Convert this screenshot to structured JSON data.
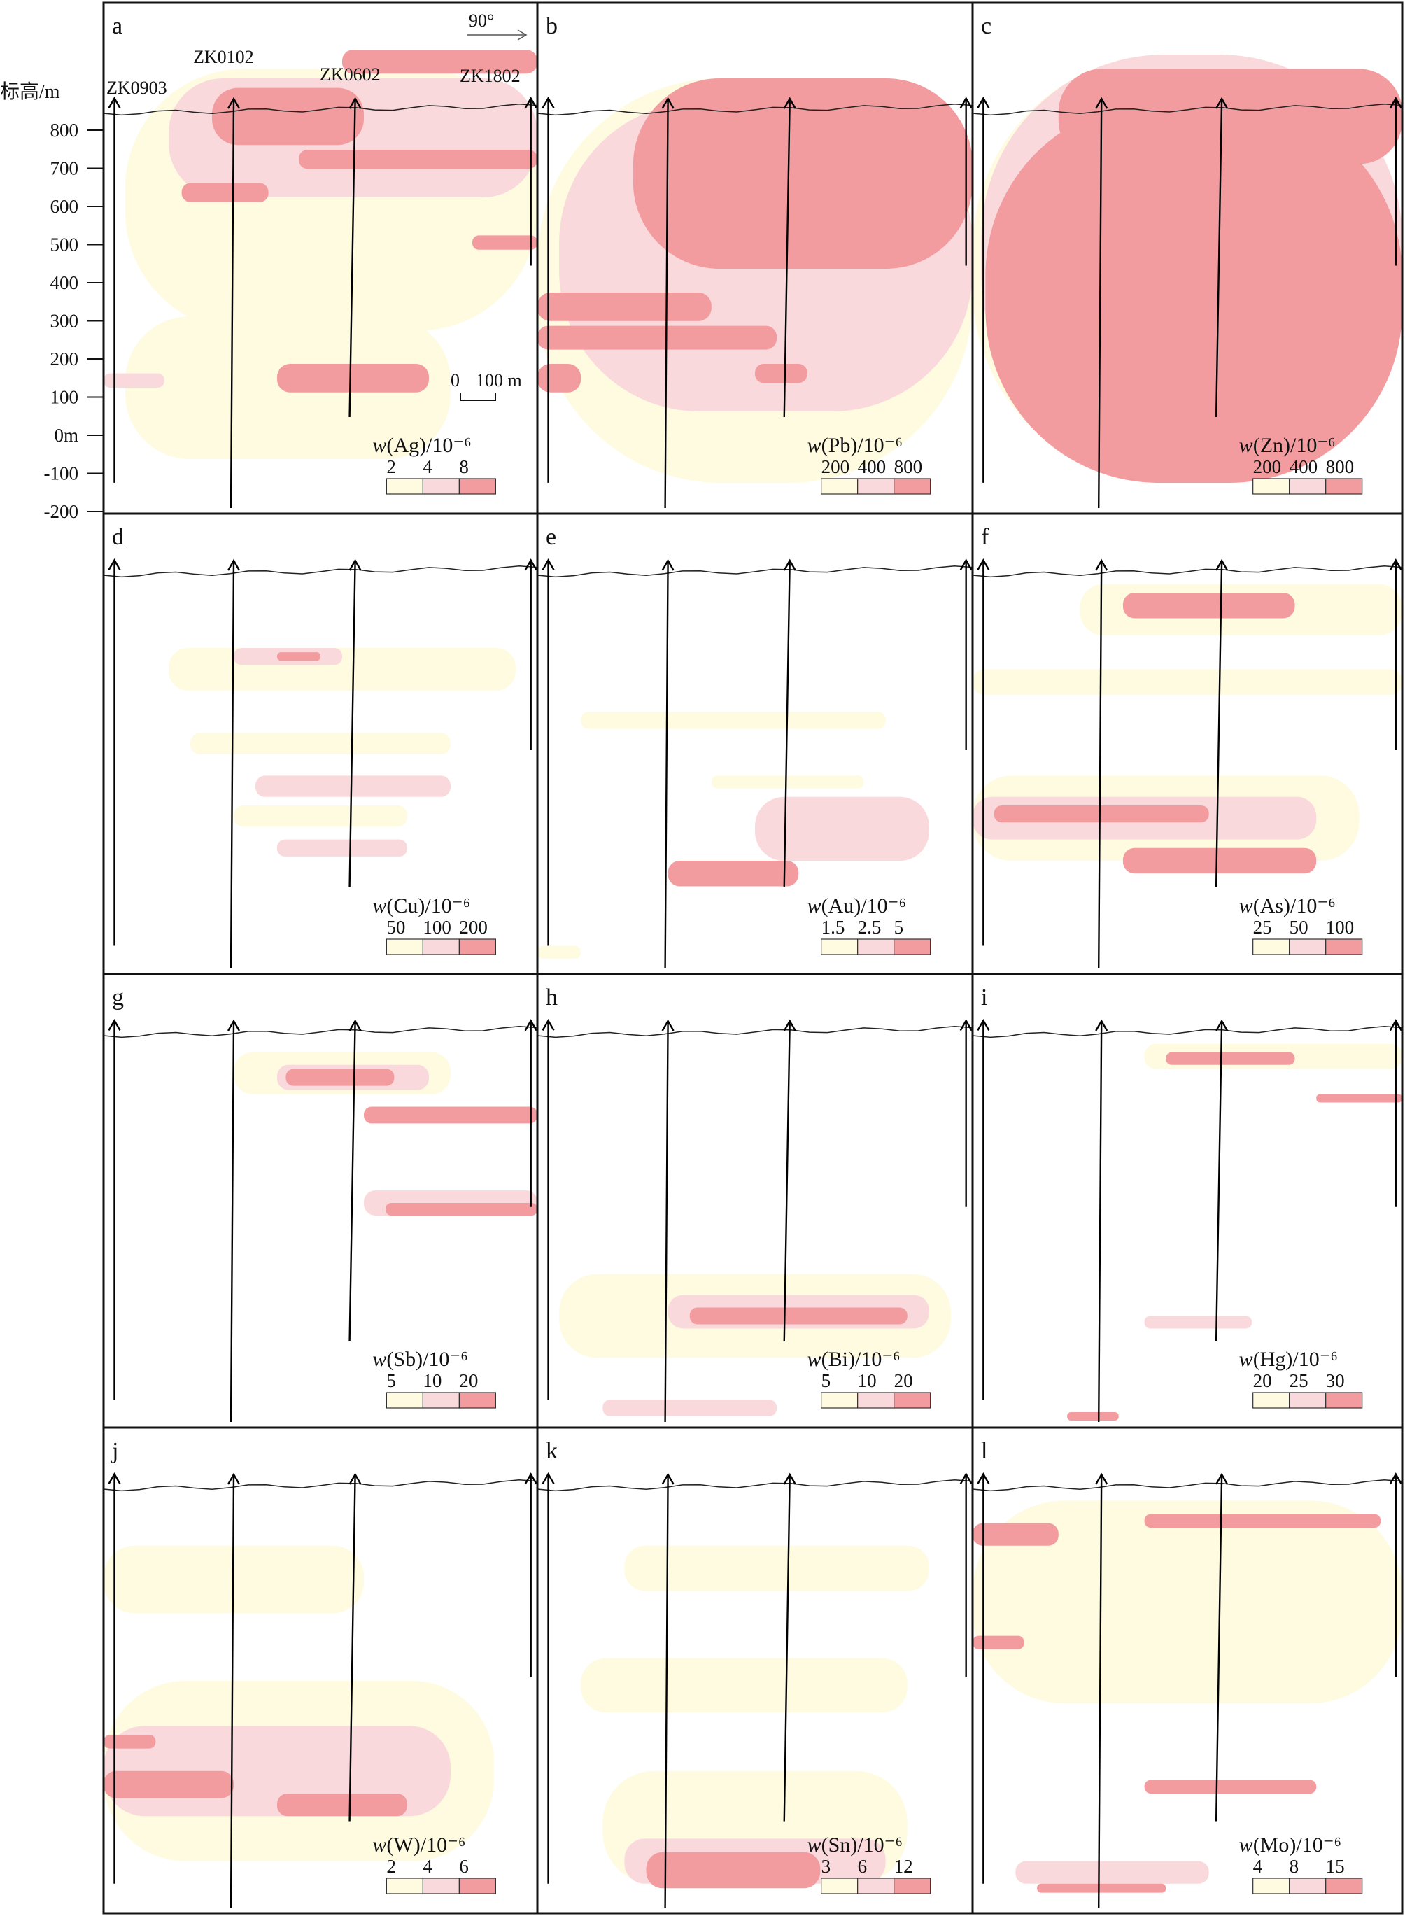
{
  "elevation_axis": {
    "title": "标高/m",
    "ticks": [
      "800",
      "700",
      "600",
      "500",
      "400",
      "300",
      "200",
      "100",
      "0m",
      "-100",
      "-200"
    ]
  },
  "boreholes": [
    "ZK0903",
    "ZK0102",
    "ZK0602",
    "ZK1802"
  ],
  "orientation": "90°",
  "scale_bar": {
    "zero": "0",
    "label": "100 m"
  },
  "panels": [
    {
      "letter": "a",
      "element": "Ag",
      "unit": "/10⁻⁶",
      "legend": [
        "2",
        "4",
        "8"
      ]
    },
    {
      "letter": "b",
      "element": "Pb",
      "unit": "/10⁻⁶",
      "legend": [
        "200",
        "400",
        "800"
      ]
    },
    {
      "letter": "c",
      "element": "Zn",
      "unit": "/10⁻⁶",
      "legend": [
        "200",
        "400",
        "800"
      ]
    },
    {
      "letter": "d",
      "element": "Cu",
      "unit": "/10⁻⁶",
      "legend": [
        "50",
        "100",
        "200"
      ]
    },
    {
      "letter": "e",
      "element": "Au",
      "unit": "/10⁻⁶",
      "legend": [
        "1.5",
        "2.5",
        "5"
      ]
    },
    {
      "letter": "f",
      "element": "As",
      "unit": "/10⁻⁶",
      "legend": [
        "25",
        "50",
        "100"
      ]
    },
    {
      "letter": "g",
      "element": "Sb",
      "unit": "/10⁻⁶",
      "legend": [
        "5",
        "10",
        "20"
      ]
    },
    {
      "letter": "h",
      "element": "Bi",
      "unit": "/10⁻⁶",
      "legend": [
        "5",
        "10",
        "20"
      ]
    },
    {
      "letter": "i",
      "element": "Hg",
      "unit": "/10⁻⁶",
      "legend": [
        "20",
        "25",
        "30"
      ]
    },
    {
      "letter": "j",
      "element": "W",
      "unit": "/10⁻⁶",
      "legend": [
        "2",
        "4",
        "6"
      ]
    },
    {
      "letter": "k",
      "element": "Sn",
      "unit": "/10⁻⁶",
      "legend": [
        "3",
        "6",
        "12"
      ]
    },
    {
      "letter": "l",
      "element": "Mo",
      "unit": "/10⁻⁶",
      "legend": [
        "4",
        "8",
        "15"
      ]
    }
  ],
  "colors": {
    "low": "#fefbe0",
    "mid": "#fad9dc",
    "high": "#f29c9f",
    "frame": "#111111"
  }
}
